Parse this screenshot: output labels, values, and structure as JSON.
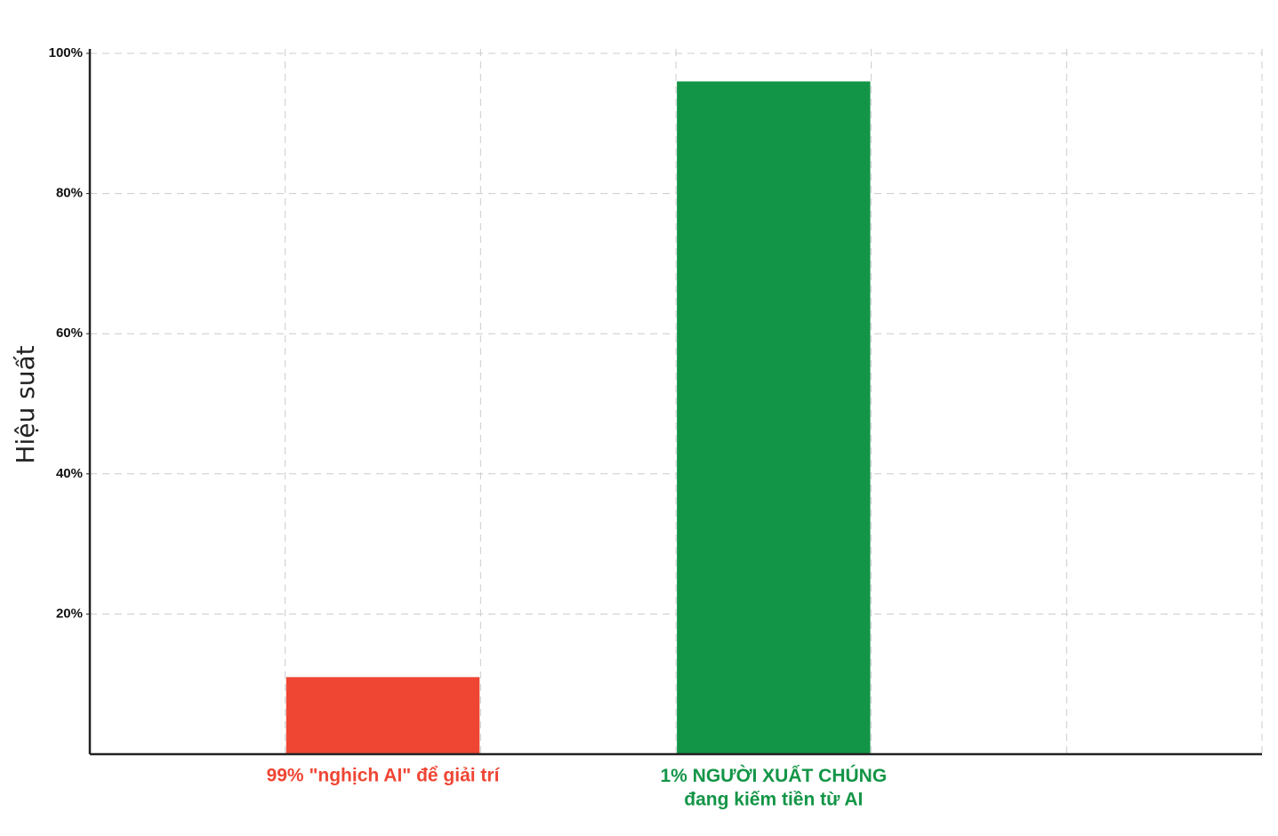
{
  "chart_data": {
    "type": "bar",
    "y_label": "Hiệu suất",
    "categories": [
      null,
      "99% \"nghịch AI\" để giải trí",
      null,
      "1% NGƯỜI XUẤT CHÚNG\nđang kiếm tiền từ AI",
      null,
      null
    ],
    "values": [
      null,
      11,
      null,
      96,
      null,
      null
    ],
    "colors": [
      null,
      "#ef4634",
      null,
      "#139547",
      null,
      null
    ],
    "ylim": [
      0,
      100
    ],
    "yticks": [
      {
        "value": 20,
        "label": "20%"
      },
      {
        "value": 40,
        "label": "40%"
      },
      {
        "value": 60,
        "label": "60%"
      },
      {
        "value": 80,
        "label": "80%"
      },
      {
        "value": 100,
        "label": "100%"
      }
    ],
    "grid": true
  }
}
